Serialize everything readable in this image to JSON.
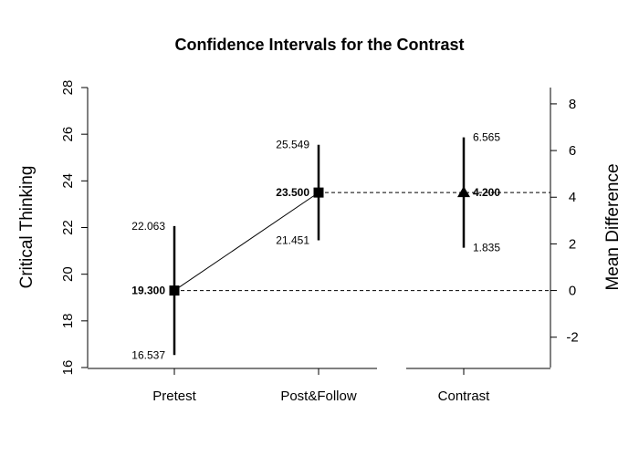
{
  "chart_data": {
    "type": "errorbar",
    "title": "Confidence Intervals for the Contrast",
    "ylabel_left": "Critical Thinking",
    "ylabel_right": "Mean Difference",
    "left_axis": {
      "min": 16,
      "max": 28,
      "ticks": [
        "16",
        "18",
        "20",
        "22",
        "24",
        "26",
        "28"
      ]
    },
    "right_axis": {
      "min": -3.3,
      "max": 8.7,
      "ticks": [
        "-2",
        "0",
        "2",
        "4",
        "6",
        "8"
      ]
    },
    "categories": [
      "Pretest",
      "Post&Follow",
      "Contrast"
    ],
    "groups": [
      {
        "category": "Pretest",
        "axis": "left",
        "marker": "square",
        "mean": 19.3,
        "lower": 16.537,
        "upper": 22.063,
        "mean_label": "19.300",
        "lower_label": "16.537",
        "upper_label": "22.063"
      },
      {
        "category": "Post&Follow",
        "axis": "left",
        "marker": "square",
        "mean": 23.5,
        "lower": 21.451,
        "upper": 25.549,
        "mean_label": "23.500",
        "lower_label": "21.451",
        "upper_label": "25.549"
      }
    ],
    "contrast": {
      "category": "Contrast",
      "axis": "right",
      "marker": "triangle",
      "mean": 4.2,
      "lower": 1.835,
      "upper": 6.565,
      "mean_label": "4.200",
      "lower_label": "1.835",
      "upper_label": "6.565"
    }
  }
}
